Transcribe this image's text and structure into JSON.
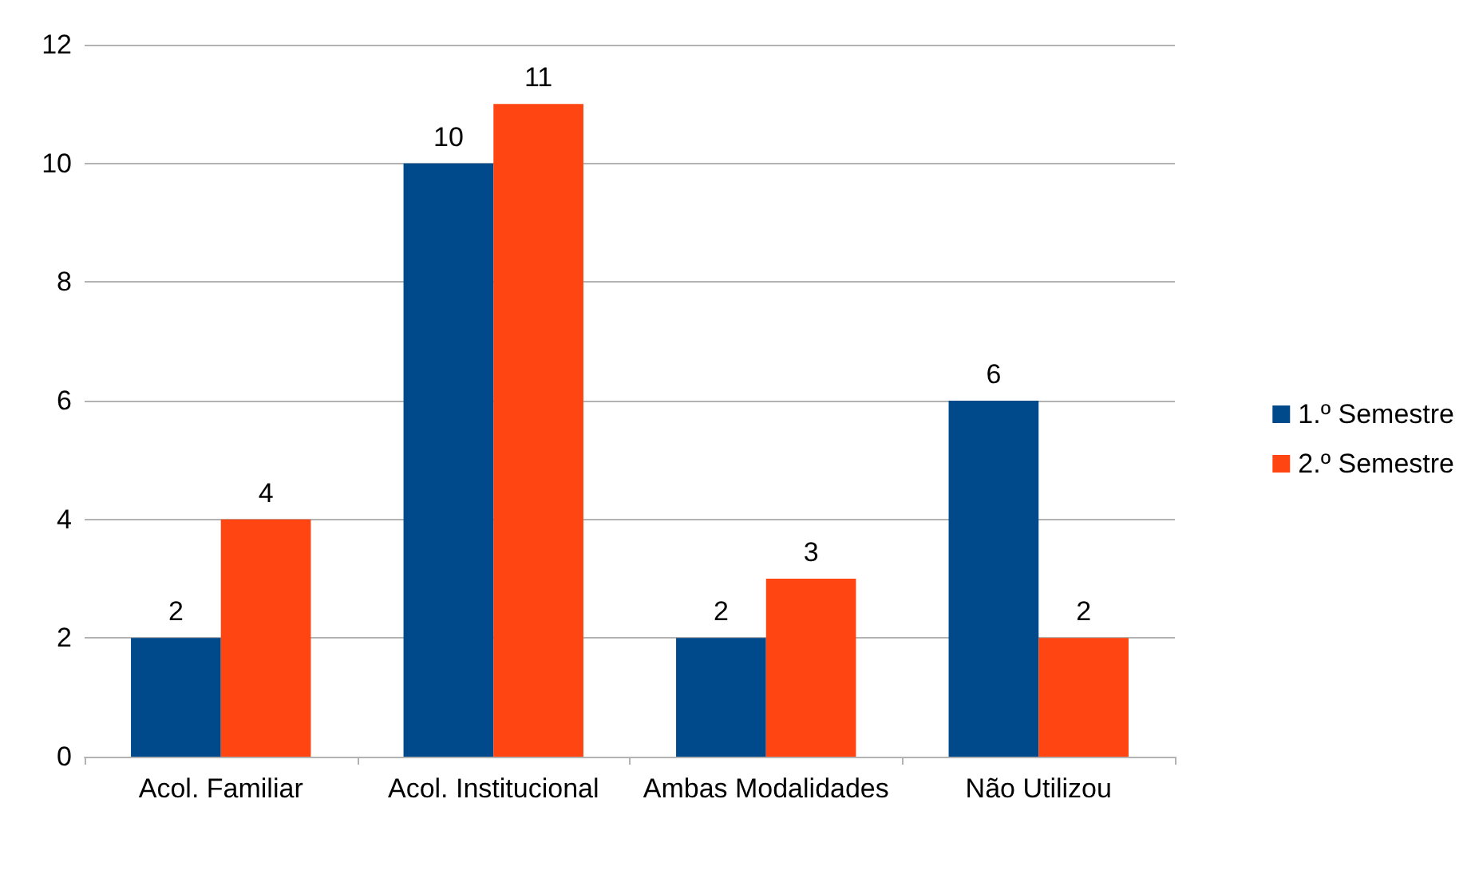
{
  "chart_data": {
    "type": "bar",
    "categories": [
      "Acol. Familiar",
      "Acol. Institucional",
      "Ambas Modalidades",
      "Não Utilizou"
    ],
    "series": [
      {
        "name": "1.º Semestre",
        "color": "#004a8c",
        "values": [
          2,
          10,
          2,
          6
        ]
      },
      {
        "name": "2.º Semestre",
        "color": "#ff4512",
        "values": [
          4,
          11,
          3,
          2
        ]
      }
    ],
    "ylim": [
      0,
      12
    ],
    "yticks": [
      0,
      2,
      4,
      6,
      8,
      10,
      12
    ],
    "grid": "y",
    "legend": "right",
    "data_labels": true
  }
}
